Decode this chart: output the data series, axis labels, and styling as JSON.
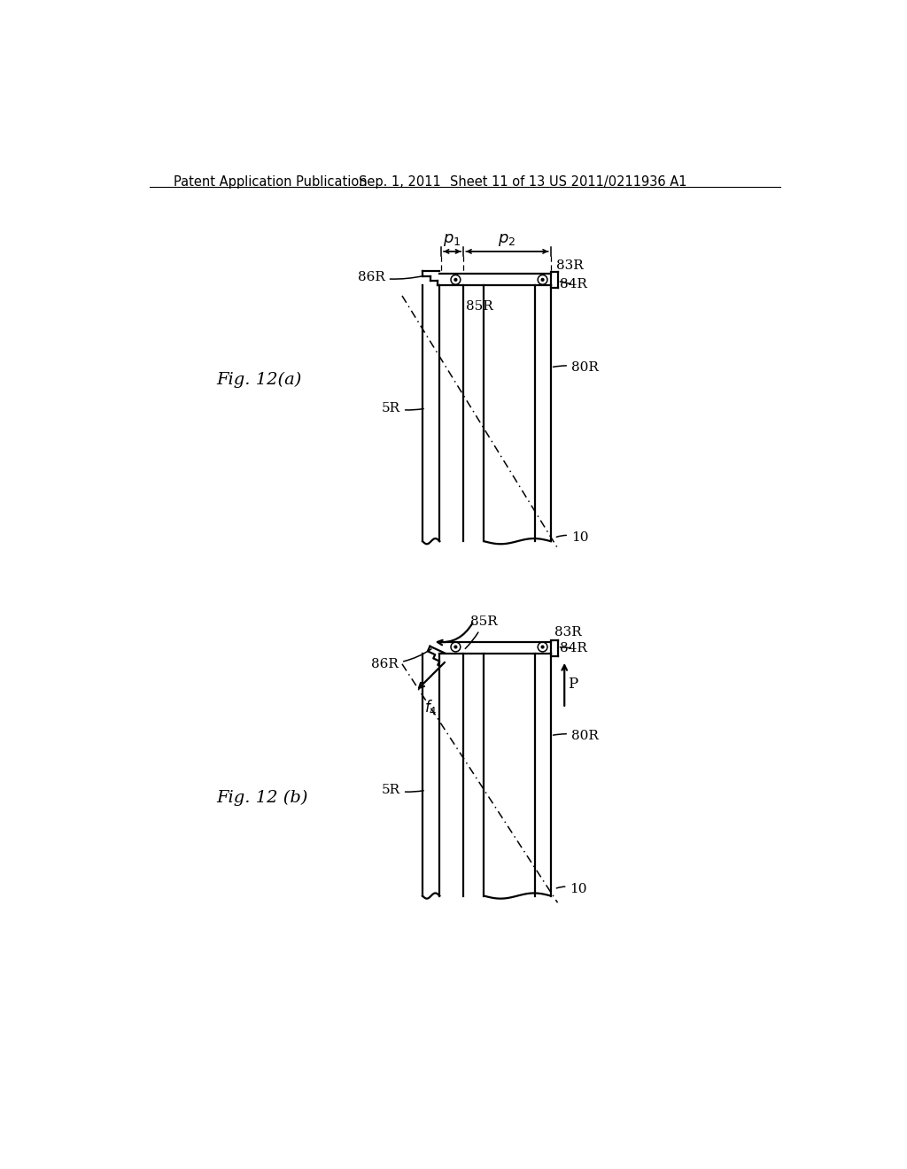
{
  "bg_color": "#ffffff",
  "header1": "Patent Application Publication",
  "header2": "Sep. 1, 2011",
  "header3": "Sheet 11 of 13",
  "header4": "US 2011/0211936 A1",
  "fig_a_label": "Fig. 12(a)",
  "fig_b_label": "Fig. 12 (b)"
}
